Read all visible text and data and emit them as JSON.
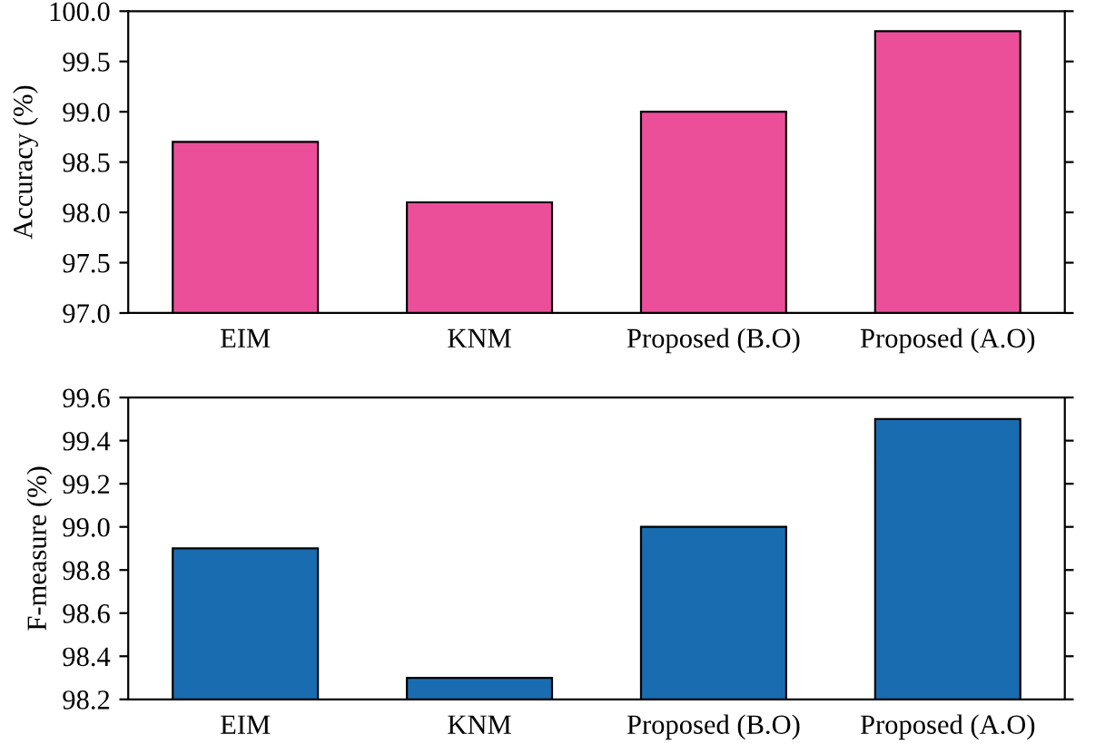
{
  "chart_data": [
    {
      "type": "bar",
      "ylabel": "Accuracy (%)",
      "categories": [
        "EIM",
        "KNM",
        "Proposed (B.O)",
        "Proposed (A.O)"
      ],
      "values": [
        98.7,
        98.1,
        99.0,
        99.8
      ],
      "color": "#ec4f9a",
      "ylim": [
        97.0,
        100.0
      ],
      "yticks": [
        {
          "value": 97.0,
          "label": "97.0"
        },
        {
          "value": 97.5,
          "label": "97.5"
        },
        {
          "value": 98.0,
          "label": "98.0"
        },
        {
          "value": 98.5,
          "label": "98.5"
        },
        {
          "value": 99.0,
          "label": "99.0"
        },
        {
          "value": 99.5,
          "label": "99.5"
        },
        {
          "value": 100.0,
          "label": "100.0"
        }
      ],
      "grid": false,
      "legend": false
    },
    {
      "type": "bar",
      "ylabel": "F-measure (%)",
      "categories": [
        "EIM",
        "KNM",
        "Proposed (B.O)",
        "Proposed (A.O)"
      ],
      "values": [
        98.9,
        98.3,
        99.0,
        99.5
      ],
      "color": "#1a6cb0",
      "ylim": [
        98.2,
        99.6
      ],
      "yticks": [
        {
          "value": 98.2,
          "label": "98.2"
        },
        {
          "value": 98.4,
          "label": "98.4"
        },
        {
          "value": 98.6,
          "label": "98.6"
        },
        {
          "value": 98.8,
          "label": "98.8"
        },
        {
          "value": 99.0,
          "label": "99.0"
        },
        {
          "value": 99.2,
          "label": "99.2"
        },
        {
          "value": 99.4,
          "label": "99.4"
        },
        {
          "value": 99.6,
          "label": "99.6"
        }
      ],
      "grid": false,
      "legend": false
    }
  ]
}
